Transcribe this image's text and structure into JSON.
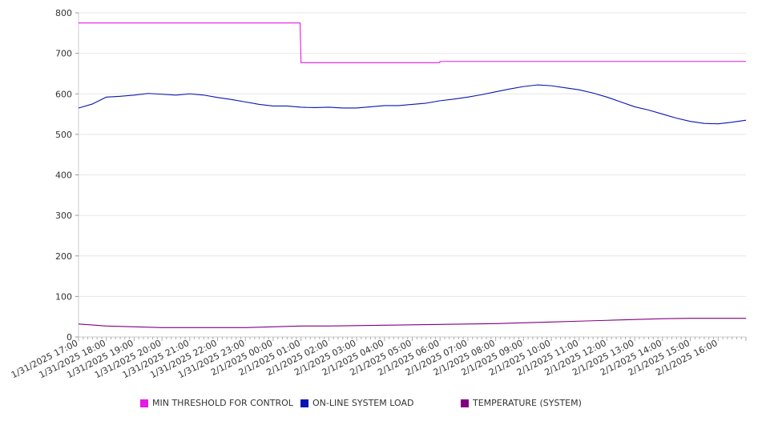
{
  "chart_data": {
    "type": "line",
    "title": "",
    "xlabel": "",
    "ylabel": "",
    "ylim": [
      0,
      800
    ],
    "yticks": [
      0,
      100,
      200,
      300,
      400,
      500,
      600,
      700,
      800
    ],
    "xlim": [
      "1/31/2025 17:00",
      "2/1/2025 17:00"
    ],
    "xtick_labels": [
      "1/31/2025 17:00",
      "1/31/2025 18:00",
      "1/31/2025 19:00",
      "1/31/2025 20:00",
      "1/31/2025 21:00",
      "1/31/2025 22:00",
      "1/31/2025 23:00",
      "2/1/2025 00:00",
      "2/1/2025 01:00",
      "2/1/2025 02:00",
      "2/1/2025 03:00",
      "2/1/2025 04:00",
      "2/1/2025 05:00",
      "2/1/2025 06:00",
      "2/1/2025 07:00",
      "2/1/2025 08:00",
      "2/1/2025 09:00",
      "2/1/2025 10:00",
      "2/1/2025 11:00",
      "2/1/2025 12:00",
      "2/1/2025 13:00",
      "2/1/2025 14:00",
      "2/1/2025 15:00",
      "2/1/2025 16:00"
    ],
    "grid": true,
    "legend_position": "bottom",
    "series": [
      {
        "name": "MIN THRESHOLD FOR CONTROL",
        "color": "#e619e6",
        "points": [
          [
            "1/31/2025 17:00",
            775
          ],
          [
            "2/1/2025 00:58",
            775
          ],
          [
            "2/1/2025 01:00",
            677
          ],
          [
            "2/1/2025 05:59",
            677
          ],
          [
            "2/1/2025 06:00",
            680
          ],
          [
            "2/1/2025 17:00",
            680
          ]
        ]
      },
      {
        "name": "ON-LINE SYSTEM LOAD",
        "color": "#0a14b4",
        "points": [
          [
            "1/31/2025 17:00",
            565
          ],
          [
            "1/31/2025 17:30",
            575
          ],
          [
            "1/31/2025 18:00",
            592
          ],
          [
            "1/31/2025 18:30",
            594
          ],
          [
            "1/31/2025 19:00",
            597
          ],
          [
            "1/31/2025 19:30",
            601
          ],
          [
            "1/31/2025 20:00",
            599
          ],
          [
            "1/31/2025 20:30",
            597
          ],
          [
            "1/31/2025 21:00",
            600
          ],
          [
            "1/31/2025 21:30",
            597
          ],
          [
            "1/31/2025 22:00",
            591
          ],
          [
            "1/31/2025 22:30",
            586
          ],
          [
            "1/31/2025 23:00",
            580
          ],
          [
            "1/31/2025 23:30",
            574
          ],
          [
            "2/1/2025 00:00",
            570
          ],
          [
            "2/1/2025 00:30",
            570
          ],
          [
            "2/1/2025 01:00",
            567
          ],
          [
            "2/1/2025 01:30",
            566
          ],
          [
            "2/1/2025 02:00",
            567
          ],
          [
            "2/1/2025 02:30",
            565
          ],
          [
            "2/1/2025 03:00",
            565
          ],
          [
            "2/1/2025 03:30",
            568
          ],
          [
            "2/1/2025 04:00",
            571
          ],
          [
            "2/1/2025 04:30",
            571
          ],
          [
            "2/1/2025 05:00",
            574
          ],
          [
            "2/1/2025 05:30",
            577
          ],
          [
            "2/1/2025 06:00",
            583
          ],
          [
            "2/1/2025 06:30",
            587
          ],
          [
            "2/1/2025 07:00",
            592
          ],
          [
            "2/1/2025 07:30",
            598
          ],
          [
            "2/1/2025 08:00",
            605
          ],
          [
            "2/1/2025 08:30",
            612
          ],
          [
            "2/1/2025 09:00",
            618
          ],
          [
            "2/1/2025 09:30",
            622
          ],
          [
            "2/1/2025 10:00",
            620
          ],
          [
            "2/1/2025 10:30",
            615
          ],
          [
            "2/1/2025 11:00",
            610
          ],
          [
            "2/1/2025 11:30",
            602
          ],
          [
            "2/1/2025 12:00",
            592
          ],
          [
            "2/1/2025 12:30",
            580
          ],
          [
            "2/1/2025 13:00",
            568
          ],
          [
            "2/1/2025 13:30",
            560
          ],
          [
            "2/1/2025 14:00",
            550
          ],
          [
            "2/1/2025 14:30",
            540
          ],
          [
            "2/1/2025 15:00",
            532
          ],
          [
            "2/1/2025 15:30",
            527
          ],
          [
            "2/1/2025 16:00",
            526
          ],
          [
            "2/1/2025 16:30",
            530
          ],
          [
            "2/1/2025 17:00",
            535
          ]
        ]
      },
      {
        "name": "TEMPERATURE (SYSTEM)",
        "color": "#800080",
        "points": [
          [
            "1/31/2025 17:00",
            32
          ],
          [
            "1/31/2025 18:00",
            27
          ],
          [
            "1/31/2025 19:00",
            25
          ],
          [
            "1/31/2025 20:00",
            23
          ],
          [
            "1/31/2025 21:00",
            23
          ],
          [
            "1/31/2025 22:00",
            23
          ],
          [
            "1/31/2025 23:00",
            23
          ],
          [
            "2/1/2025 00:00",
            25
          ],
          [
            "2/1/2025 01:00",
            27
          ],
          [
            "2/1/2025 02:00",
            27
          ],
          [
            "2/1/2025 03:00",
            28
          ],
          [
            "2/1/2025 04:00",
            29
          ],
          [
            "2/1/2025 05:00",
            30
          ],
          [
            "2/1/2025 06:00",
            31
          ],
          [
            "2/1/2025 07:00",
            32
          ],
          [
            "2/1/2025 08:00",
            33
          ],
          [
            "2/1/2025 09:00",
            35
          ],
          [
            "2/1/2025 10:00",
            37
          ],
          [
            "2/1/2025 11:00",
            39
          ],
          [
            "2/1/2025 12:00",
            41
          ],
          [
            "2/1/2025 13:00",
            43
          ],
          [
            "2/1/2025 14:00",
            45
          ],
          [
            "2/1/2025 15:00",
            46
          ],
          [
            "2/1/2025 16:00",
            46
          ],
          [
            "2/1/2025 17:00",
            46
          ]
        ]
      }
    ]
  }
}
